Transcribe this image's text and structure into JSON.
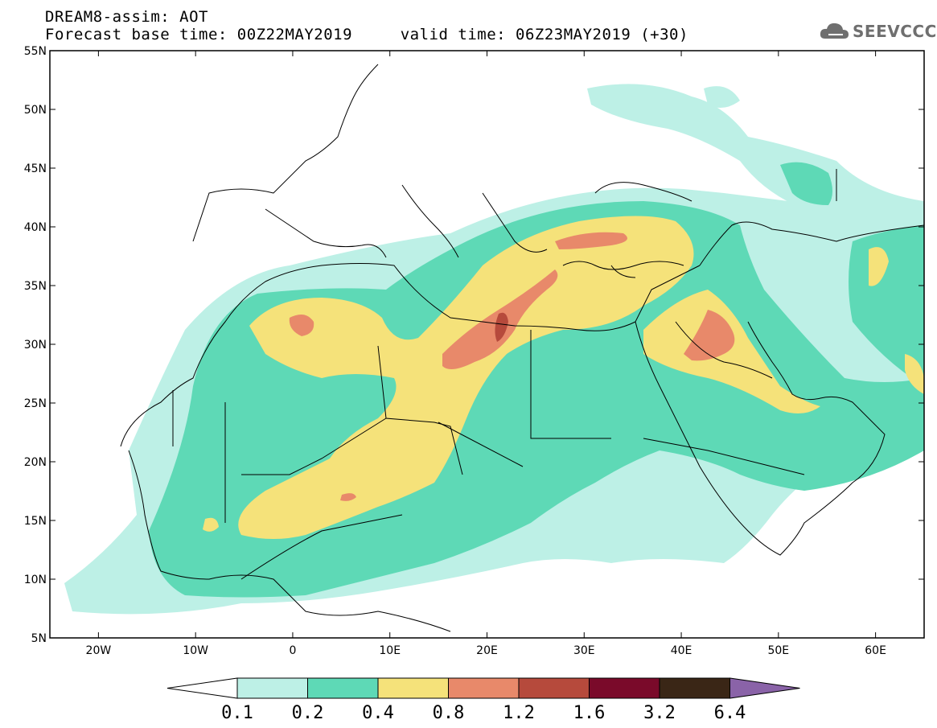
{
  "title": {
    "line1": "DREAM8-assim: AOT",
    "line2": "Forecast base time: 00Z22MAY2019     valid time: 06Z23MAY2019 (+30)"
  },
  "logo": {
    "icon": "cloud-icon",
    "text": "SEEVCCC"
  },
  "map": {
    "lon_range": [
      -25,
      65
    ],
    "lat_range": [
      5,
      55
    ],
    "lat_ticks": [
      {
        "value": 55,
        "label": "55N"
      },
      {
        "value": 50,
        "label": "50N"
      },
      {
        "value": 45,
        "label": "45N"
      },
      {
        "value": 40,
        "label": "40N"
      },
      {
        "value": 35,
        "label": "35N"
      },
      {
        "value": 30,
        "label": "30N"
      },
      {
        "value": 25,
        "label": "25N"
      },
      {
        "value": 20,
        "label": "20N"
      },
      {
        "value": 15,
        "label": "15N"
      },
      {
        "value": 10,
        "label": "10N"
      },
      {
        "value": 5,
        "label": "5N"
      }
    ],
    "lon_ticks": [
      {
        "value": -20,
        "label": "20W"
      },
      {
        "value": -10,
        "label": "10W"
      },
      {
        "value": 0,
        "label": "0"
      },
      {
        "value": 10,
        "label": "10E"
      },
      {
        "value": 20,
        "label": "20E"
      },
      {
        "value": 30,
        "label": "30E"
      },
      {
        "value": 40,
        "label": "40E"
      },
      {
        "value": 50,
        "label": "50E"
      },
      {
        "value": 60,
        "label": "60E"
      }
    ]
  },
  "colorbar": {
    "levels": [
      "0.1",
      "0.2",
      "0.4",
      "0.8",
      "1.2",
      "1.6",
      "3.2",
      "6.4"
    ],
    "colors": [
      "#ffffff",
      "#bdf0e6",
      "#5ed9b6",
      "#f5e27a",
      "#e8896a",
      "#b64a3c",
      "#7a0a2a",
      "#3a2616",
      "#8a63a8"
    ]
  }
}
